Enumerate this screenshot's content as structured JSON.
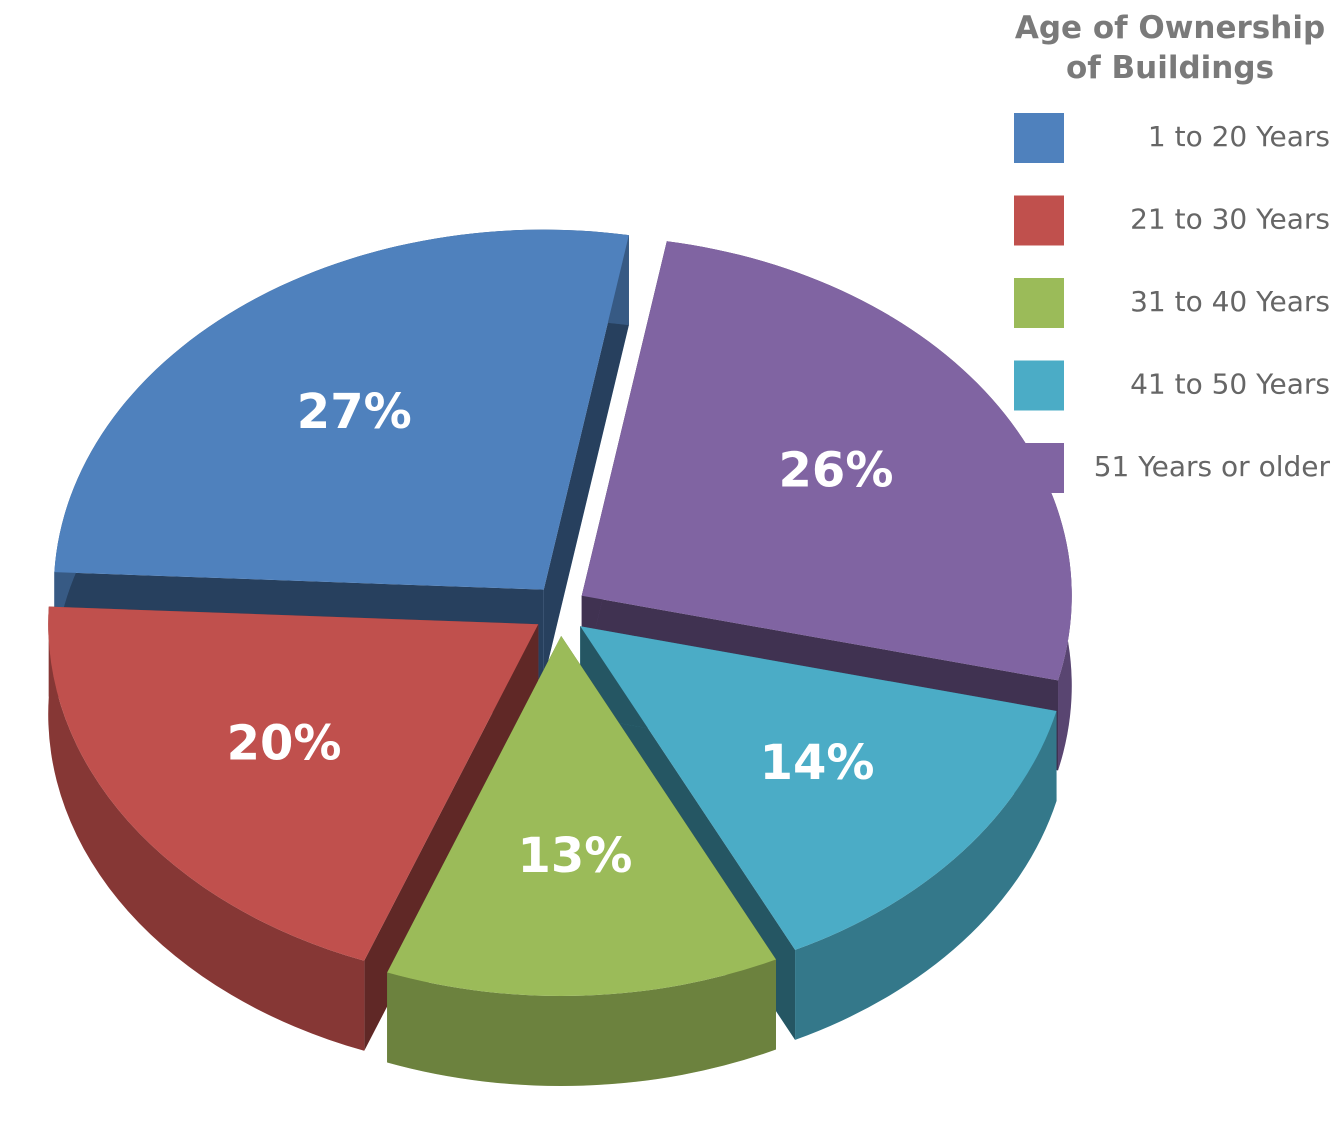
{
  "chart_data": {
    "type": "pie3d",
    "title": "Age of Ownership of Buildings",
    "categories": [
      "1 to 20 Years",
      "21 to 30 Years",
      "31 to 40 Years",
      "41 to 50 Years",
      "51 Years or older"
    ],
    "values": [
      27,
      20,
      13,
      14,
      26
    ],
    "value_labels": [
      "27%",
      "20%",
      "13%",
      "14%",
      "26%"
    ],
    "colors": [
      "#4f81bd",
      "#c0504d",
      "#9bbb59",
      "#4bacc6",
      "#8064a2"
    ],
    "legend": "top-right"
  }
}
